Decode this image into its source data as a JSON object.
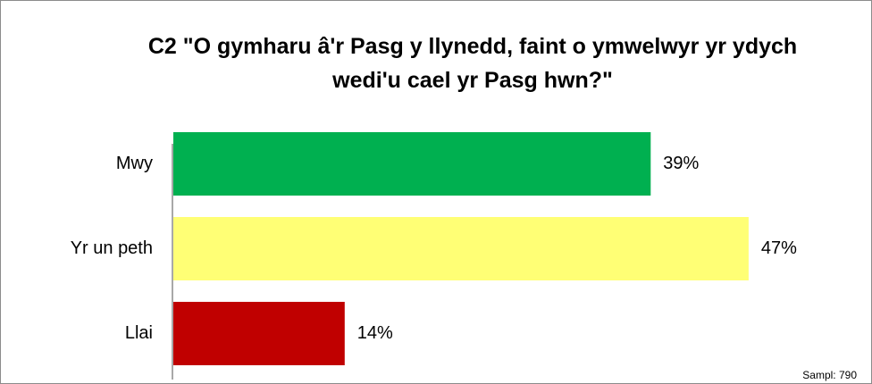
{
  "chart_data": {
    "type": "bar",
    "orientation": "horizontal",
    "title": "C2 \"O gymharu â'r Pasg y llynedd, faint o ymwelwyr yr ydych wedi'u cael yr Pasg hwn?\"",
    "categories": [
      "Mwy",
      "Yr un peth",
      "Llai"
    ],
    "values": [
      39,
      47,
      14
    ],
    "value_labels": [
      "39%",
      "47%",
      "14%"
    ],
    "colors": [
      "#00b050",
      "#ffff75",
      "#c00000"
    ],
    "annotation": "Sampl: 790"
  }
}
